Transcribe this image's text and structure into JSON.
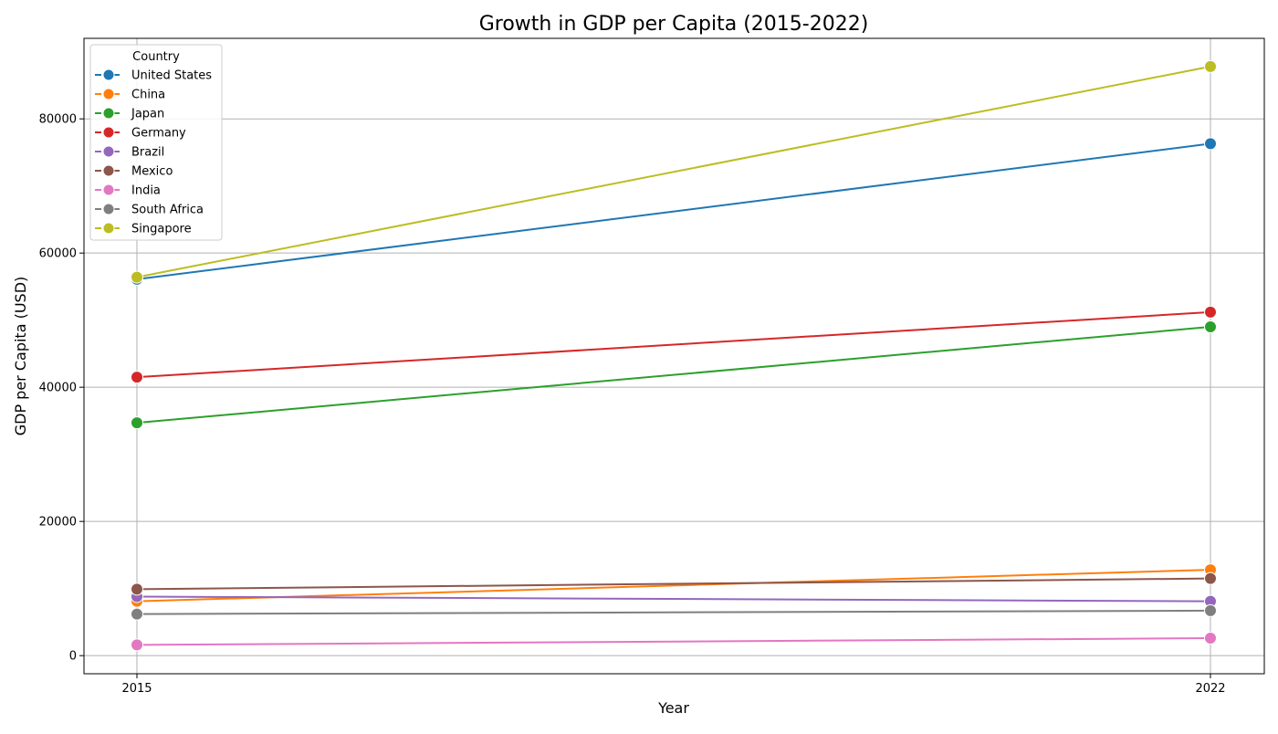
{
  "chart_data": {
    "type": "line",
    "title": "Growth in GDP per Capita (2015-2022)",
    "xlabel": "Year",
    "ylabel": "GDP per Capita (USD)",
    "x": [
      2015,
      2022
    ],
    "x_tick_labels": [
      "2015",
      "2022"
    ],
    "ylim": [
      -2700,
      92000
    ],
    "y_ticks": [
      0,
      20000,
      40000,
      60000,
      80000
    ],
    "y_tick_labels": [
      "0",
      "20000",
      "40000",
      "60000",
      "80000"
    ],
    "grid": true,
    "legend": {
      "title": "Country",
      "placement": "top-left"
    },
    "series": [
      {
        "name": "United States",
        "color": "#1f77b4",
        "values": [
          56100,
          76300
        ]
      },
      {
        "name": "China",
        "color": "#ff7f0e",
        "values": [
          8100,
          12800
        ]
      },
      {
        "name": "Japan",
        "color": "#2ca02c",
        "values": [
          34700,
          49000
        ]
      },
      {
        "name": "Germany",
        "color": "#d62728",
        "values": [
          41500,
          51200
        ]
      },
      {
        "name": "Brazil",
        "color": "#9467bd",
        "values": [
          8800,
          8100
        ]
      },
      {
        "name": "Mexico",
        "color": "#8c564b",
        "values": [
          9900,
          11500
        ]
      },
      {
        "name": "India",
        "color": "#e377c2",
        "values": [
          1600,
          2600
        ]
      },
      {
        "name": "South Africa",
        "color": "#7f7f7f",
        "values": [
          6200,
          6700
        ]
      },
      {
        "name": "Singapore",
        "color": "#bcbd22",
        "values": [
          56400,
          87800
        ]
      }
    ]
  }
}
